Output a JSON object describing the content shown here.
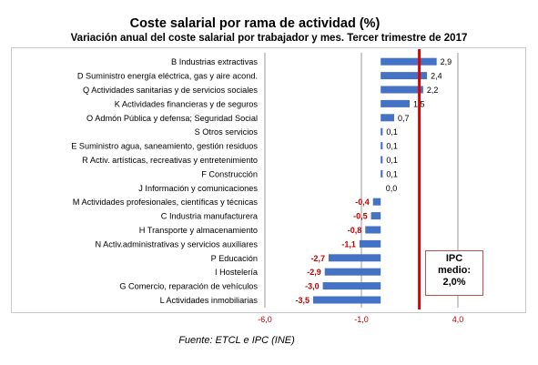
{
  "title": "Coste salarial por rama de actividad (%)",
  "subtitle": "Variación anual del coste salarial por trabajador y mes. Tercer trimestre de 2017",
  "source": "Fuente: ETCL e IPC (INE)",
  "colors": {
    "bar": "#4472c4",
    "negative_label": "#c00000",
    "positive_label": "#000000",
    "reference_line": "#e00000",
    "gridline": "#9a9a9a",
    "tick_label": "#c00000"
  },
  "chart_data": {
    "type": "bar",
    "orientation": "horizontal",
    "title": "Coste salarial por rama de actividad (%)",
    "subtitle": "Variación anual del coste salarial por trabajador y mes. Tercer trimestre de 2017",
    "categories": [
      "B Industrias extractivas",
      "D Suministro energía eléctrica, gas y aire acond.",
      "Q Actividades sanitarias y de servicios sociales",
      "K Actividades financieras y de seguros",
      "O Admón Pública y defensa; Seguridad Social",
      "S Otros servicios",
      "E Suministro agua, saneamiento, gestión residuos",
      "R Activ. artísticas, recreativas y entretenimiento",
      "F Construcción",
      "J Información y comunicaciones",
      "M Actividades profesionales, científicas y técnicas",
      "C Industria manufacturera",
      "H Transporte y almacenamiento",
      "N Activ.administrativas y servicios auxiliares",
      "P Educación",
      "I Hostelería",
      "G Comercio, reparación de vehículos",
      "L Actividades inmobiliarias"
    ],
    "values": [
      2.9,
      2.4,
      2.2,
      1.5,
      0.7,
      0.1,
      0.1,
      0.1,
      0.1,
      0.0,
      -0.4,
      -0.5,
      -0.8,
      -1.1,
      -2.7,
      -2.9,
      -3.0,
      -3.5
    ],
    "value_labels": [
      "2,9",
      "2,4",
      "2,2",
      "1,5",
      "0,7",
      "0,1",
      "0,1",
      "0,1",
      "0,1",
      "0,0",
      "-0,4",
      "-0,5",
      "-0,8",
      "-1,1",
      "-2,7",
      "-2,9",
      "-3,0",
      "-3,5"
    ],
    "xlim": [
      -6.0,
      4.0
    ],
    "x_ticks": [
      -6.0,
      -1.0,
      4.0
    ],
    "x_tick_labels": [
      "-6,0",
      "-1,0",
      "4,0"
    ],
    "grid": "vertical",
    "reference_line": {
      "value": 2.0,
      "label_lines": [
        "IPC",
        "medio:",
        "2,0%"
      ]
    }
  }
}
